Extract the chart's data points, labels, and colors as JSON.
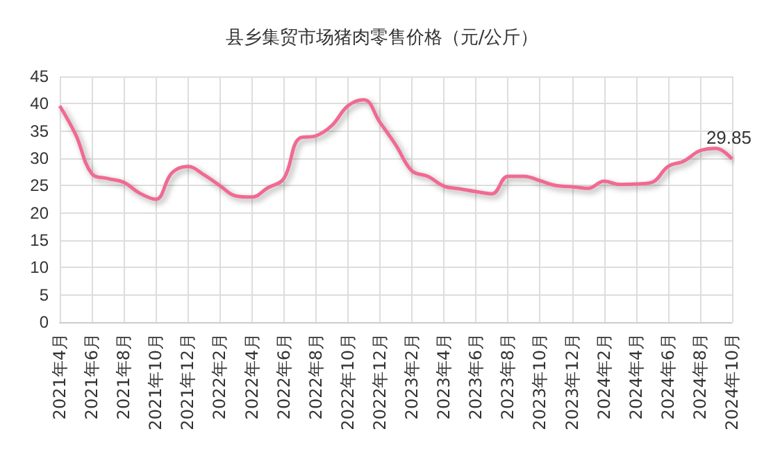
{
  "chart_data": {
    "type": "line",
    "title": "县乡集贸市场猪肉零售价格（元/公斤）",
    "categories": [
      "2021年4月",
      null,
      "2021年6月",
      null,
      "2021年8月",
      null,
      "2021年10月",
      null,
      "2021年12月",
      null,
      "2022年2月",
      null,
      "2022年4月",
      null,
      "2022年6月",
      null,
      "2022年8月",
      null,
      "2022年10月",
      null,
      "2022年12月",
      null,
      "2023年2月",
      null,
      "2023年4月",
      null,
      "2023年6月",
      null,
      "2023年8月",
      null,
      "2023年10月",
      null,
      "2023年12月",
      null,
      "2024年2月",
      null,
      "2024年4月",
      null,
      "2024年6月",
      null,
      "2024年8月",
      null,
      "2024年10月"
    ],
    "series": [
      {
        "color": "#f06a92",
        "values": [
          39.6,
          34.3,
          27.2,
          26.3,
          25.6,
          23.6,
          22.5,
          27.3,
          28.5,
          27.0,
          25.0,
          23.1,
          22.9,
          24.6,
          26.3,
          33.7,
          34.1,
          36.0,
          39.6,
          40.7,
          36.6,
          32.4,
          27.7,
          26.7,
          24.9,
          24.4,
          23.9,
          23.5,
          26.7,
          26.7,
          25.9,
          25.0,
          24.8,
          24.5,
          25.8,
          25.2,
          25.3,
          25.6,
          28.5,
          29.5,
          31.4,
          31.8,
          29.85
        ],
        "value_labels": [
          null,
          null,
          null,
          null,
          null,
          null,
          null,
          null,
          null,
          null,
          null,
          null,
          null,
          null,
          null,
          null,
          null,
          null,
          null,
          null,
          null,
          null,
          null,
          null,
          null,
          null,
          null,
          null,
          null,
          null,
          null,
          null,
          null,
          null,
          null,
          null,
          null,
          null,
          null,
          null,
          null,
          null,
          "29.85"
        ]
      }
    ],
    "ylim": [
      0,
      45
    ],
    "yticks": [
      0,
      5,
      10,
      15,
      20,
      25,
      30,
      35,
      40,
      45
    ],
    "grid": true,
    "marker": "none",
    "line_style": "solid"
  }
}
